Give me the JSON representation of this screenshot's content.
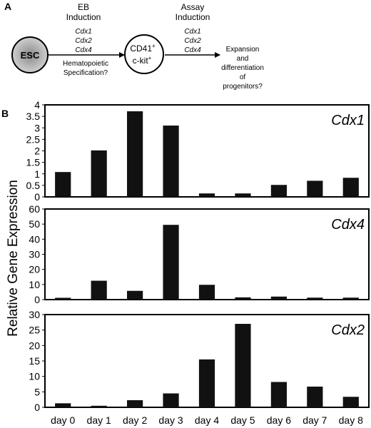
{
  "panel_a": {
    "label": "A",
    "esc_label": "ESC",
    "eb_title_line1": "EB",
    "eb_title_line2": "Induction",
    "eb_genes": [
      "Cdx1",
      "Cdx2",
      "Cdx4"
    ],
    "eb_note_line1": "Hematopoietic",
    "eb_note_line2": "Specification?",
    "cell_line1": "CD41",
    "cell_line1_sup": "+",
    "cell_line2": "c-kit",
    "cell_line2_sup": "+",
    "assay_title_line1": "Assay",
    "assay_title_line2": "Induction",
    "assay_genes": [
      "Cdx1",
      "Cdx2",
      "Cdx4"
    ],
    "outcome_lines": [
      "Expansion",
      "and",
      "differentiation",
      "of",
      "progenitors?"
    ]
  },
  "panel_b": {
    "label": "B",
    "ylabel": "Relative Gene Expression"
  },
  "chart_data": [
    {
      "type": "bar",
      "title": "Cdx1",
      "categories": [
        "day 0",
        "day 1",
        "day 2",
        "day 3",
        "day 4",
        "day 5",
        "day 6",
        "day 7",
        "day 8"
      ],
      "values": [
        1.08,
        2.02,
        3.72,
        3.1,
        0.15,
        0.15,
        0.52,
        0.7,
        0.83
      ],
      "ylim": [
        0,
        4
      ],
      "yticks": [
        "0",
        "0.5",
        "1",
        "1.5",
        "2",
        "2.5",
        "3",
        "3.5",
        "4"
      ],
      "ytick_values": [
        0,
        0.5,
        1,
        1.5,
        2,
        2.5,
        3,
        3.5,
        4
      ],
      "bar_color": "#111111"
    },
    {
      "type": "bar",
      "title": "Cdx4",
      "categories": [
        "day 0",
        "day 1",
        "day 2",
        "day 3",
        "day 4",
        "day 5",
        "day 6",
        "day 7",
        "day 8"
      ],
      "values": [
        1.2,
        12.5,
        5.8,
        49.5,
        9.8,
        1.5,
        2.0,
        1.3,
        1.3
      ],
      "ylim": [
        0,
        60
      ],
      "yticks": [
        "0",
        "10",
        "20",
        "30",
        "40",
        "50",
        "60"
      ],
      "ytick_values": [
        0,
        10,
        20,
        30,
        40,
        50,
        60
      ],
      "bar_color": "#111111"
    },
    {
      "type": "bar",
      "title": "Cdx2",
      "categories": [
        "day 0",
        "day 1",
        "day 2",
        "day 3",
        "day 4",
        "day 5",
        "day 6",
        "day 7",
        "day 8"
      ],
      "values": [
        1.3,
        0.5,
        2.3,
        4.5,
        15.5,
        27.0,
        8.2,
        6.7,
        3.4
      ],
      "ylim": [
        0,
        30
      ],
      "yticks": [
        "0",
        "5",
        "10",
        "15",
        "20",
        "25",
        "30"
      ],
      "ytick_values": [
        0,
        5,
        10,
        15,
        20,
        25,
        30
      ],
      "bar_color": "#111111",
      "xticks_shown": true
    }
  ]
}
